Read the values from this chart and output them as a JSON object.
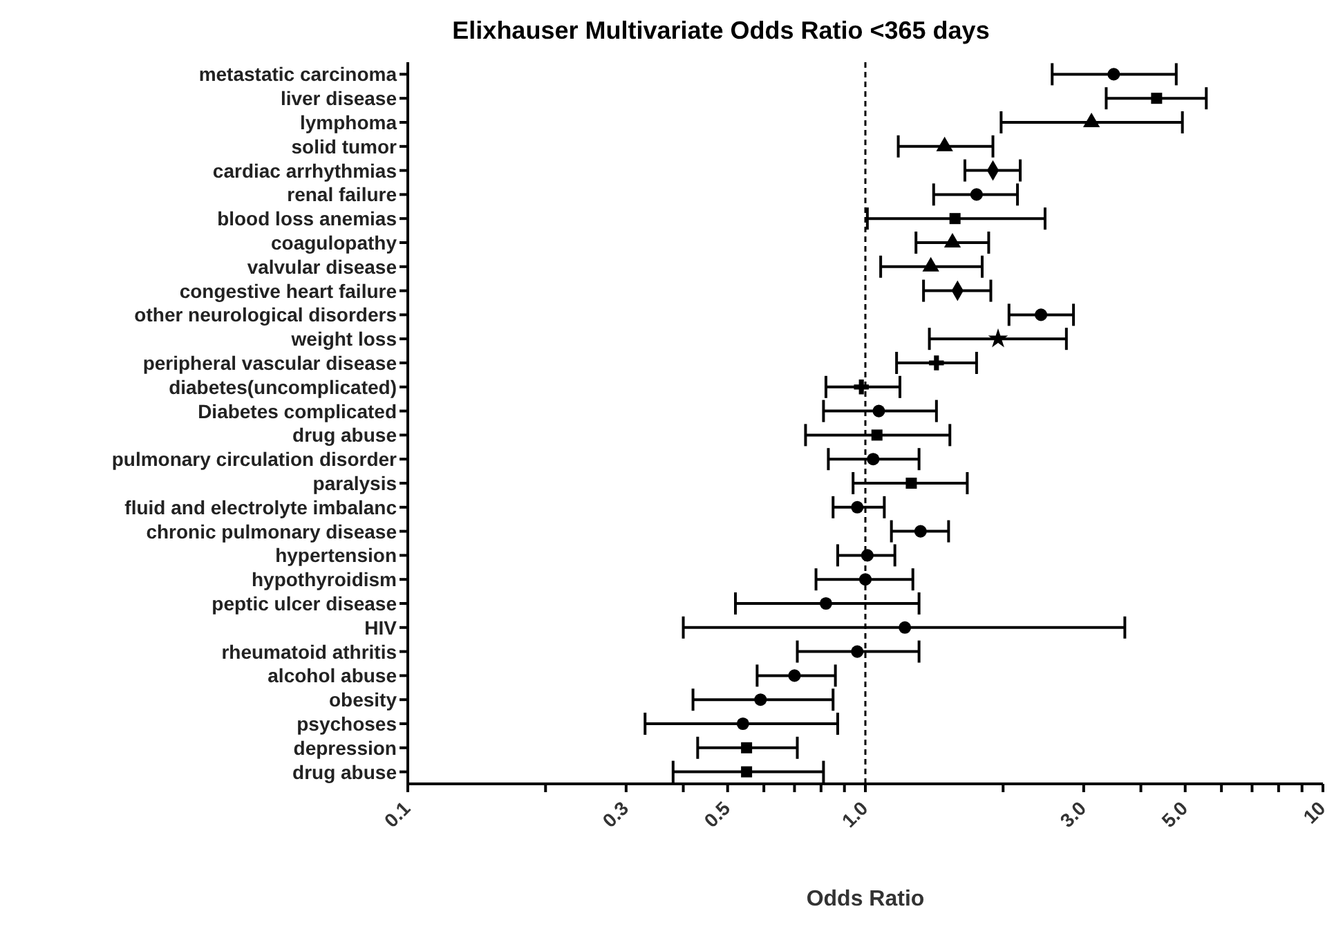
{
  "chart_data": {
    "type": "scatter",
    "orientation": "horizontal",
    "title": "Elixhauser Multivariate Odds Ratio <365 days",
    "xlabel": "Odds Ratio",
    "log": "x",
    "grid": false,
    "categories": [
      "metastatic carcinoma",
      "liver disease",
      "lymphoma",
      "solid tumor",
      "cardiac arrhythmias",
      "renal failure",
      "blood loss anemias",
      "coagulopathy",
      "valvular disease",
      "congestive heart failure",
      "other neurological disorders",
      "weight loss",
      "peripheral vascular disease",
      "diabetes(uncomplicated)",
      "Diabetes complicated",
      "drug abuse",
      "pulmonary circulation disorder",
      "paralysis",
      "fluid and electrolyte imbalanc",
      "chronic pulmonary disease",
      "hypertension",
      "hypothyroidism",
      "peptic ulcer disease",
      "HIV",
      "rheumatoid athritis",
      "alcohol abuse",
      "obesity",
      "psychoses",
      "depression",
      "drug abuse"
    ],
    "xlim": [
      0.1,
      10
    ],
    "xticks": [
      0.1,
      {
        "value": 0.2,
        "label": null
      },
      0.3,
      {
        "value": 0.4,
        "label": null
      },
      0.5,
      {
        "value": 0.6,
        "label": null
      },
      {
        "value": 0.7,
        "label": null
      },
      {
        "value": 0.8,
        "label": null
      },
      {
        "value": 0.9,
        "label": null
      },
      {
        "value": 1,
        "label": "1.0"
      },
      {
        "value": 2,
        "label": null
      },
      {
        "value": 3,
        "label": "3.0"
      },
      {
        "value": 4,
        "label": null
      },
      {
        "value": 5,
        "label": "5.0"
      },
      {
        "value": 6,
        "label": null
      },
      {
        "value": 7,
        "label": null
      },
      {
        "value": 8,
        "label": null
      },
      {
        "value": 9,
        "label": null
      },
      10
    ],
    "ref_lines": [
      {
        "axis": "x",
        "value": 1,
        "color": "#000000",
        "line_style": "dashed"
      }
    ],
    "series": [
      {
        "color": "#000000",
        "marker": "circle",
        "values": [
          3.49,
          null,
          null,
          null,
          null,
          1.75,
          null,
          null,
          null,
          null,
          2.42,
          null,
          null,
          null,
          1.07,
          null,
          1.04,
          null,
          0.96,
          1.32,
          1.01,
          1.0,
          0.82,
          1.22,
          0.96,
          0.7,
          0.59,
          0.54,
          null,
          null
        ],
        "errors": [
          [
            2.56,
            4.78
          ],
          null,
          null,
          null,
          null,
          [
            1.41,
            2.15
          ],
          null,
          null,
          null,
          null,
          [
            2.06,
            2.85
          ],
          null,
          null,
          null,
          [
            0.81,
            1.43
          ],
          null,
          [
            0.83,
            1.31
          ],
          null,
          [
            0.85,
            1.1
          ],
          [
            1.14,
            1.52
          ],
          [
            0.87,
            1.16
          ],
          [
            0.78,
            1.27
          ],
          [
            0.52,
            1.31
          ],
          [
            0.4,
            3.69
          ],
          [
            0.71,
            1.31
          ],
          [
            0.58,
            0.86
          ],
          [
            0.42,
            0.85
          ],
          [
            0.33,
            0.87
          ],
          null,
          null
        ]
      },
      {
        "color": "#000000",
        "marker": "square",
        "values": [
          null,
          4.33,
          null,
          null,
          null,
          null,
          1.57,
          null,
          null,
          null,
          null,
          null,
          null,
          null,
          null,
          1.06,
          null,
          1.26,
          null,
          null,
          null,
          null,
          null,
          null,
          null,
          null,
          null,
          null,
          0.55,
          0.55
        ],
        "errors": [
          null,
          [
            3.36,
            5.56
          ],
          null,
          null,
          null,
          null,
          [
            1.01,
            2.47
          ],
          null,
          null,
          null,
          null,
          null,
          null,
          null,
          null,
          [
            0.74,
            1.53
          ],
          null,
          [
            0.94,
            1.67
          ],
          null,
          null,
          null,
          null,
          null,
          null,
          null,
          null,
          null,
          null,
          [
            0.43,
            0.71
          ],
          [
            0.38,
            0.81
          ]
        ]
      },
      {
        "color": "#000000",
        "marker": "triangle",
        "values": [
          null,
          null,
          3.12,
          1.49,
          null,
          null,
          null,
          1.55,
          1.39,
          null,
          null,
          null,
          null,
          null,
          null,
          null,
          null,
          null,
          null,
          null,
          null,
          null,
          null,
          null,
          null,
          null,
          null,
          null,
          null,
          null
        ],
        "errors": [
          null,
          null,
          [
            1.98,
            4.93
          ],
          [
            1.18,
            1.9
          ],
          null,
          null,
          null,
          [
            1.29,
            1.86
          ],
          [
            1.08,
            1.8
          ],
          null,
          null,
          null,
          null,
          null,
          null,
          null,
          null,
          null,
          null,
          null,
          null,
          null,
          null,
          null,
          null,
          null,
          null,
          null,
          null,
          null
        ]
      },
      {
        "color": "#000000",
        "marker": "diamond",
        "values": [
          null,
          null,
          null,
          null,
          1.9,
          null,
          null,
          null,
          null,
          1.59,
          null,
          null,
          null,
          null,
          null,
          null,
          null,
          null,
          null,
          null,
          null,
          null,
          null,
          null,
          null,
          null,
          null,
          null,
          null,
          null
        ],
        "errors": [
          null,
          null,
          null,
          null,
          [
            1.65,
            2.18
          ],
          null,
          null,
          null,
          null,
          [
            1.34,
            1.88
          ],
          null,
          null,
          null,
          null,
          null,
          null,
          null,
          null,
          null,
          null,
          null,
          null,
          null,
          null,
          null,
          null,
          null,
          null,
          null,
          null
        ]
      },
      {
        "color": "#000000",
        "marker": "star",
        "values": [
          null,
          null,
          null,
          null,
          null,
          null,
          null,
          null,
          null,
          null,
          null,
          1.95,
          null,
          null,
          null,
          null,
          null,
          null,
          null,
          null,
          null,
          null,
          null,
          null,
          null,
          null,
          null,
          null,
          null,
          null
        ],
        "errors": [
          null,
          null,
          null,
          null,
          null,
          null,
          null,
          null,
          null,
          null,
          null,
          [
            1.38,
            2.75
          ],
          null,
          null,
          null,
          null,
          null,
          null,
          null,
          null,
          null,
          null,
          null,
          null,
          null,
          null,
          null,
          null,
          null,
          null
        ]
      },
      {
        "color": "#000000",
        "marker": "cross",
        "values": [
          null,
          null,
          null,
          null,
          null,
          null,
          null,
          null,
          null,
          null,
          null,
          null,
          1.43,
          0.98,
          null,
          null,
          null,
          null,
          null,
          null,
          null,
          null,
          null,
          null,
          null,
          null,
          null,
          null,
          null,
          null
        ],
        "errors": [
          null,
          null,
          null,
          null,
          null,
          null,
          null,
          null,
          null,
          null,
          null,
          null,
          [
            1.17,
            1.75
          ],
          [
            0.82,
            1.19
          ],
          null,
          null,
          null,
          null,
          null,
          null,
          null,
          null,
          null,
          null,
          null,
          null,
          null,
          null,
          null,
          null
        ]
      }
    ]
  }
}
